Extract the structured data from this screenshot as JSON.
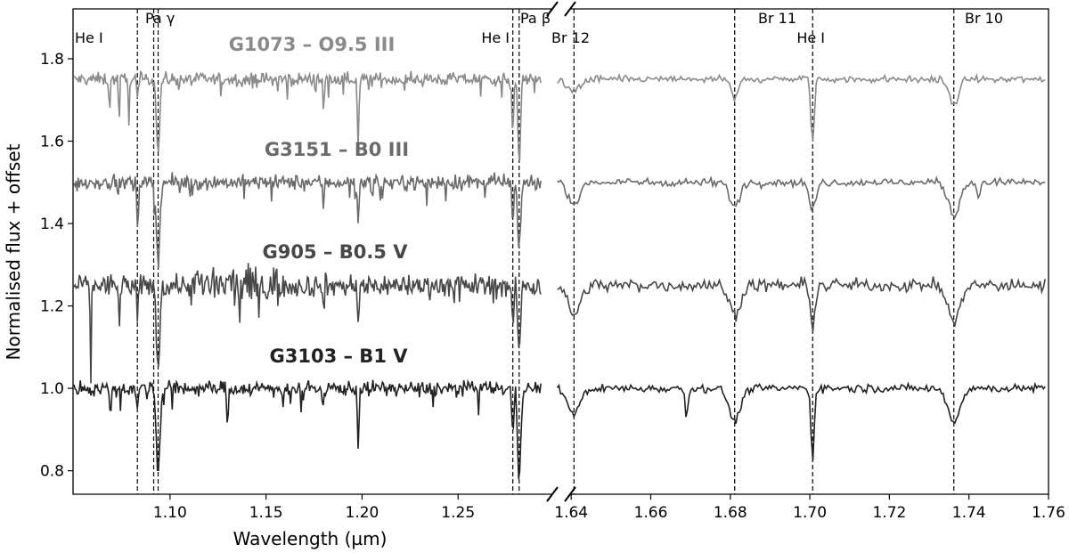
{
  "chart_data": {
    "type": "line",
    "xlabel": "Wavelength (µm)",
    "ylabel": "Normalised flux + offset",
    "xlim_left": [
      1.0495,
      1.2986
    ],
    "xlim_right": [
      1.6357,
      1.76
    ],
    "ylim": [
      0.743,
      1.921
    ],
    "broken_x_axis": true,
    "grid": false,
    "xticks_left": [
      "1.10",
      "1.15",
      "1.20",
      "1.25"
    ],
    "xticks_right": [
      "1.64",
      "1.66",
      "1.68",
      "1.70",
      "1.72",
      "1.74",
      "1.76"
    ],
    "yticks": [
      "0.8",
      "1.0",
      "1.2",
      "1.4",
      "1.6",
      "1.8"
    ],
    "line_markers": [
      {
        "label": "He I",
        "x": 1.083
      },
      {
        "label": "Pa γ",
        "x": 1.0938
      },
      {
        "label": "",
        "x": 1.0915
      },
      {
        "label": "He I",
        "x": 1.2785
      },
      {
        "label": "Pa β",
        "x": 1.2818
      },
      {
        "label": "Br 12",
        "x": 1.6407
      },
      {
        "label": "Br 11",
        "x": 1.6811
      },
      {
        "label": "He I",
        "x": 1.7007
      },
      {
        "label": "Br 10",
        "x": 1.7362
      }
    ],
    "series": [
      {
        "name": "G1073 – O9.5 III",
        "offset": 1.75,
        "color": "#8a8a8a",
        "noise": 0.008,
        "lines": [
          [
            1.0685,
            0.08,
            0.0003
          ],
          [
            1.0735,
            0.1,
            0.0003
          ],
          [
            1.0785,
            0.1,
            0.0003
          ],
          [
            1.083,
            0.05,
            0.0004
          ],
          [
            1.0938,
            0.18,
            0.0008
          ],
          [
            1.18,
            0.08,
            0.0003
          ],
          [
            1.198,
            0.16,
            0.0004
          ],
          [
            1.2785,
            0.13,
            0.0005
          ],
          [
            1.2818,
            0.2,
            0.0007
          ],
          [
            1.6407,
            0.03,
            0.0015
          ],
          [
            1.6811,
            0.05,
            0.0008
          ],
          [
            1.7007,
            0.16,
            0.0004
          ],
          [
            1.7362,
            0.06,
            0.0012
          ]
        ]
      },
      {
        "name": "G3151 – B0 III",
        "offset": 1.5,
        "color": "#6a6a6a",
        "noise": 0.009,
        "lines": [
          [
            1.083,
            0.1,
            0.0004
          ],
          [
            1.0938,
            0.19,
            0.0009
          ],
          [
            1.18,
            0.07,
            0.0003
          ],
          [
            1.198,
            0.11,
            0.0004
          ],
          [
            1.2785,
            0.1,
            0.0005
          ],
          [
            1.2818,
            0.17,
            0.0008
          ],
          [
            1.6407,
            0.05,
            0.0015
          ],
          [
            1.6811,
            0.06,
            0.0012
          ],
          [
            1.7007,
            0.07,
            0.0008
          ],
          [
            1.7362,
            0.08,
            0.0014
          ],
          [
            1.7425,
            0.05,
            0.0003
          ]
        ]
      },
      {
        "name": "G905 – B0.5 V",
        "offset": 1.25,
        "color": "#474747",
        "noise": 0.014,
        "lines": [
          [
            1.0587,
            0.23,
            0.0003
          ],
          [
            1.0735,
            0.1,
            0.0003
          ],
          [
            1.083,
            0.1,
            0.0004
          ],
          [
            1.0938,
            0.2,
            0.0009
          ],
          [
            1.18,
            0.07,
            0.0003
          ],
          [
            1.198,
            0.11,
            0.0004
          ],
          [
            1.2785,
            0.1,
            0.0005
          ],
          [
            1.2818,
            0.15,
            0.0008
          ],
          [
            1.6407,
            0.07,
            0.0016
          ],
          [
            1.6811,
            0.07,
            0.0014
          ],
          [
            1.7007,
            0.1,
            0.0006
          ],
          [
            1.7362,
            0.09,
            0.0015
          ]
        ]
      },
      {
        "name": "G3103 – B1 V",
        "offset": 1.0,
        "color": "#222222",
        "noise": 0.009,
        "lines": [
          [
            1.0685,
            0.05,
            0.0003
          ],
          [
            1.083,
            0.06,
            0.0004
          ],
          [
            1.0938,
            0.21,
            0.0009
          ],
          [
            1.13,
            0.12,
            0.0003
          ],
          [
            1.18,
            0.07,
            0.0003
          ],
          [
            1.198,
            0.14,
            0.0004
          ],
          [
            1.2785,
            0.12,
            0.0005
          ],
          [
            1.2818,
            0.22,
            0.0008
          ],
          [
            1.6407,
            0.06,
            0.0016
          ],
          [
            1.669,
            0.08,
            0.0003
          ],
          [
            1.6811,
            0.08,
            0.0014
          ],
          [
            1.7007,
            0.17,
            0.0004
          ],
          [
            1.7362,
            0.08,
            0.0015
          ]
        ]
      }
    ]
  }
}
